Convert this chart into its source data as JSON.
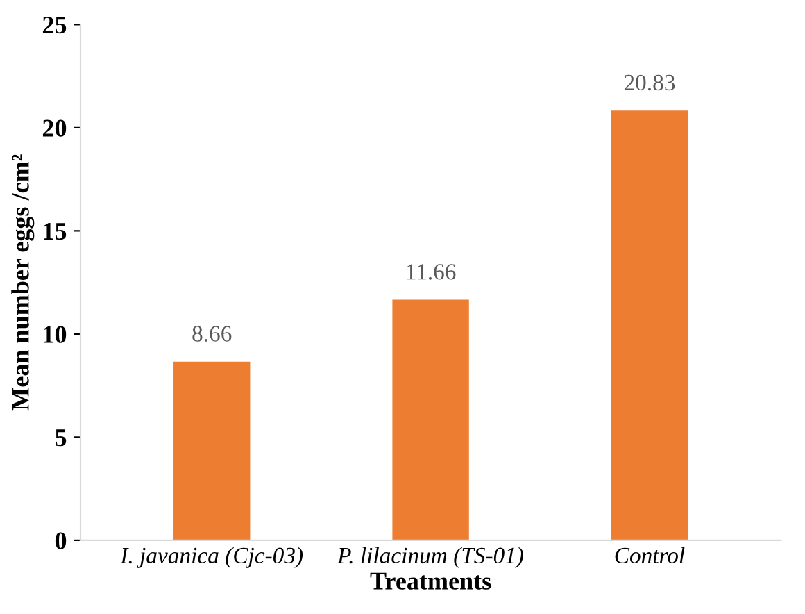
{
  "chart_data": {
    "type": "bar",
    "categories": [
      "I. javanica (Cjc-03)",
      "P. lilacinum (TS-01)",
      "Control"
    ],
    "values": [
      8.66,
      11.66,
      20.83
    ],
    "color": "#ed7d31",
    "xlabel": "Treatments",
    "ylabel": "Mean number eggs /cm²",
    "ylim": [
      0,
      25
    ],
    "yticks": [
      0,
      5,
      10,
      15,
      20,
      25
    ],
    "data_labels": true,
    "grid": false,
    "legend": false
  }
}
